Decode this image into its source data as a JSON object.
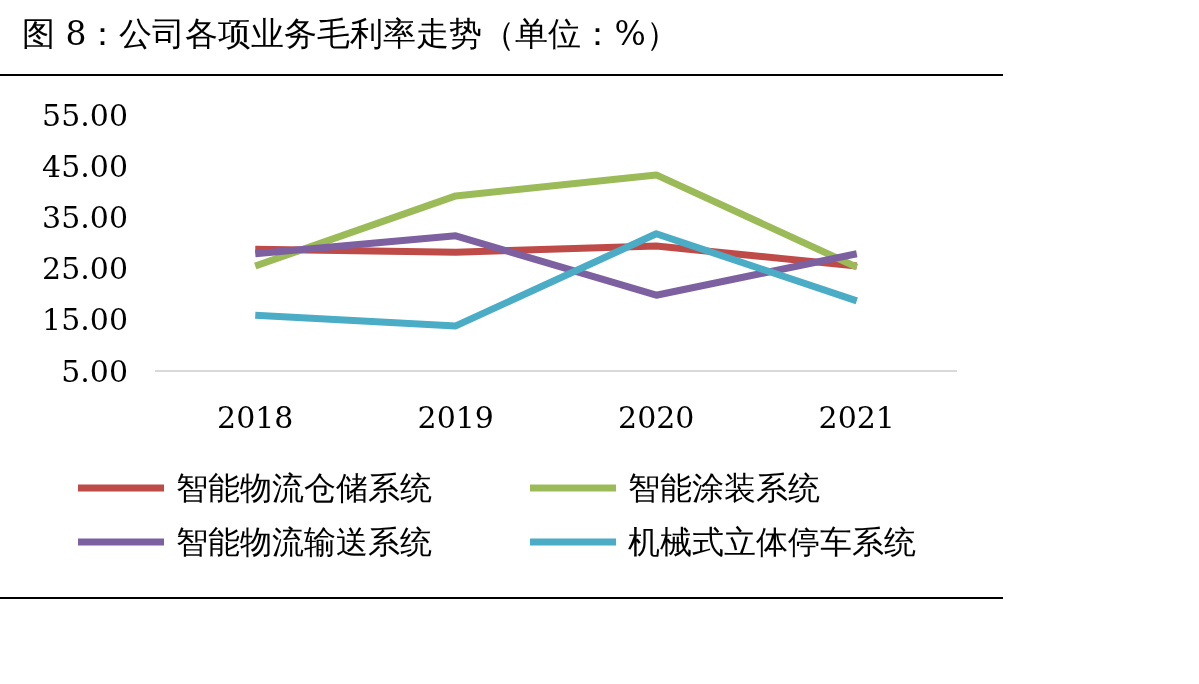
{
  "chart_data": {
    "type": "line",
    "title": "图 8：公司各项业务毛利率走势（单位：%）",
    "categories": [
      "2018",
      "2019",
      "2020",
      "2021"
    ],
    "series": [
      {
        "name": "智能物流仓储系统",
        "color": "#be4b48",
        "values": [
          28.8,
          28.2,
          29.4,
          25.5
        ]
      },
      {
        "name": "智能涂装系统",
        "color": "#9bbb59",
        "values": [
          25.5,
          39.2,
          43.3,
          25.3
        ]
      },
      {
        "name": "智能物流输送系统",
        "color": "#7d60a0",
        "values": [
          27.9,
          31.4,
          19.8,
          27.9
        ]
      },
      {
        "name": "机械式立体停车系统",
        "color": "#4bacc6",
        "values": [
          15.9,
          13.8,
          31.8,
          18.7
        ]
      }
    ],
    "ylim": [
      5,
      55
    ],
    "yticks": [
      {
        "value": 5,
        "label": "5.00"
      },
      {
        "value": 15,
        "label": "15.00"
      },
      {
        "value": 25,
        "label": "25.00"
      },
      {
        "value": 35,
        "label": "35.00"
      },
      {
        "value": 45,
        "label": "45.00"
      },
      {
        "value": 55,
        "label": "55.00"
      }
    ],
    "grid": false,
    "legend": "bottom",
    "marker": "none",
    "line_style": "solid"
  }
}
